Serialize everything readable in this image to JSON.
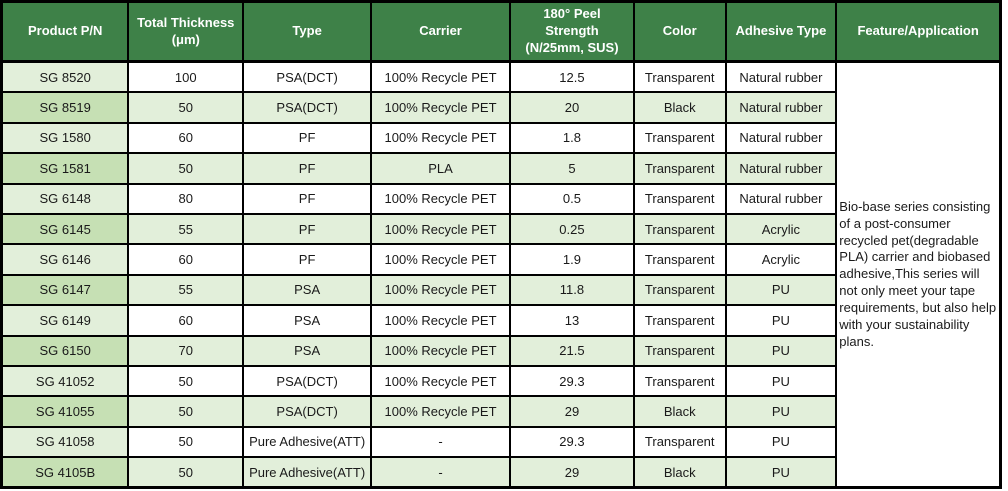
{
  "table": {
    "title": "Bio-base tape product specification table",
    "headers": [
      "Product P/N",
      "Total Thickness\n(μm)",
      "Type",
      "Carrier",
      "180° Peel\nStrength\n(N/25mm, SUS)",
      "Color",
      "Adhesive Type",
      "Feature/Application"
    ],
    "rows": [
      [
        "SG 8520",
        "100",
        "PSA(DCT)",
        "100% Recycle PET",
        "12.5",
        "Transparent",
        "Natural rubber"
      ],
      [
        "SG 8519",
        "50",
        "PSA(DCT)",
        "100% Recycle PET",
        "20",
        "Black",
        "Natural rubber"
      ],
      [
        "SG 1580",
        "60",
        "PF",
        "100% Recycle PET",
        "1.8",
        "Transparent",
        "Natural rubber"
      ],
      [
        "SG 1581",
        "50",
        "PF",
        "PLA",
        "5",
        "Transparent",
        "Natural rubber"
      ],
      [
        "SG 6148",
        "80",
        "PF",
        "100% Recycle PET",
        "0.5",
        "Transparent",
        "Natural rubber"
      ],
      [
        "SG 6145",
        "55",
        "PF",
        "100% Recycle PET",
        "0.25",
        "Transparent",
        "Acrylic"
      ],
      [
        "SG 6146",
        "60",
        "PF",
        "100% Recycle PET",
        "1.9",
        "Transparent",
        "Acrylic"
      ],
      [
        "SG 6147",
        "55",
        "PSA",
        "100% Recycle PET",
        "11.8",
        "Transparent",
        "PU"
      ],
      [
        "SG 6149",
        "60",
        "PSA",
        "100% Recycle PET",
        "13",
        "Transparent",
        "PU"
      ],
      [
        "SG 6150",
        "70",
        "PSA",
        "100% Recycle PET",
        "21.5",
        "Transparent",
        "PU"
      ],
      [
        "SG 41052",
        "50",
        "PSA(DCT)",
        "100% Recycle PET",
        "29.3",
        "Transparent",
        "PU"
      ],
      [
        "SG 41055",
        "50",
        "PSA(DCT)",
        "100% Recycle PET",
        "29",
        "Black",
        "PU"
      ],
      [
        "SG 41058",
        "50",
        "Pure Adhesive(ATT)",
        "-",
        "29.3",
        "Transparent",
        "PU"
      ],
      [
        "SG 4105B",
        "50",
        "Pure Adhesive(ATT)",
        "-",
        "29",
        "Black",
        "PU"
      ]
    ],
    "feature_text": "Bio-base series consisting of a post-consumer recycled pet(degradable PLA) carrier and  biobased adhesive,This series will not only meet your tape requirements, but also help with your sustainability plans.",
    "column_names": [
      "product-pn",
      "total-thickness",
      "type",
      "carrier",
      "peel-strength",
      "color",
      "adhesive-type"
    ]
  },
  "chart_data": {
    "type": "table",
    "title": "Bio-base tape series specifications",
    "columns": [
      "Product P/N",
      "Total Thickness (μm)",
      "Type",
      "Carrier",
      "180° Peel Strength (N/25mm, SUS)",
      "Color",
      "Adhesive Type"
    ],
    "rows": [
      [
        "SG 8520",
        100,
        "PSA(DCT)",
        "100% Recycle PET",
        12.5,
        "Transparent",
        "Natural rubber"
      ],
      [
        "SG 8519",
        50,
        "PSA(DCT)",
        "100% Recycle PET",
        20,
        "Black",
        "Natural rubber"
      ],
      [
        "SG 1580",
        60,
        "PF",
        "100% Recycle PET",
        1.8,
        "Transparent",
        "Natural rubber"
      ],
      [
        "SG 1581",
        50,
        "PF",
        "PLA",
        5,
        "Transparent",
        "Natural rubber"
      ],
      [
        "SG 6148",
        80,
        "PF",
        "100% Recycle PET",
        0.5,
        "Transparent",
        "Natural rubber"
      ],
      [
        "SG 6145",
        55,
        "PF",
        "100% Recycle PET",
        0.25,
        "Transparent",
        "Acrylic"
      ],
      [
        "SG 6146",
        60,
        "PF",
        "100% Recycle PET",
        1.9,
        "Transparent",
        "Acrylic"
      ],
      [
        "SG 6147",
        55,
        "PSA",
        "100% Recycle PET",
        11.8,
        "Transparent",
        "PU"
      ],
      [
        "SG 6149",
        60,
        "PSA",
        "100% Recycle PET",
        13,
        "Transparent",
        "PU"
      ],
      [
        "SG 6150",
        70,
        "PSA",
        "100% Recycle PET",
        21.5,
        "Transparent",
        "PU"
      ],
      [
        "SG 41052",
        50,
        "PSA(DCT)",
        "100% Recycle PET",
        29.3,
        "Transparent",
        "PU"
      ],
      [
        "SG 41055",
        50,
        "PSA(DCT)",
        "100% Recycle PET",
        29,
        "Black",
        "PU"
      ],
      [
        "SG 41058",
        50,
        "Pure Adhesive(ATT)",
        "-",
        29.3,
        "Transparent",
        "PU"
      ],
      [
        "SG 4105B",
        50,
        "Pure Adhesive(ATT)",
        "-",
        29,
        "Black",
        "PU"
      ]
    ]
  },
  "colors": {
    "header_bg": "#3E8148",
    "header_text": "#FFFFFF",
    "light_green": "#E2EFDA",
    "medium_green": "#C6E0B4",
    "border": "#000000"
  }
}
